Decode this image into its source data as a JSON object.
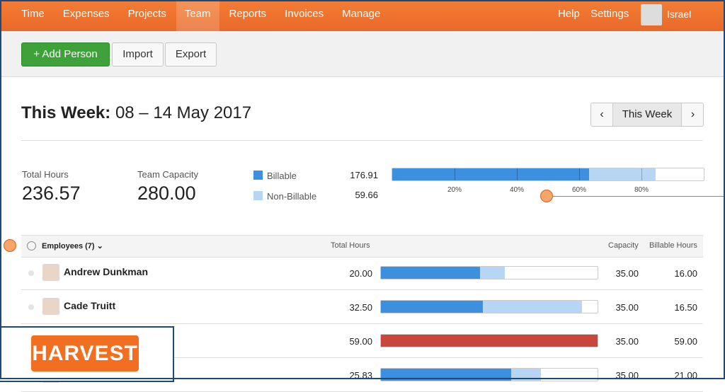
{
  "nav": {
    "items": [
      "Time",
      "Expenses",
      "Projects",
      "Team",
      "Reports",
      "Invoices",
      "Manage"
    ],
    "active": "Team",
    "right": [
      "Help",
      "Settings"
    ],
    "user": "Israel"
  },
  "toolbar": {
    "add": "+ Add Person",
    "import": "Import",
    "export": "Export"
  },
  "header": {
    "title_bold": "This Week:",
    "title_range": "08 – 14 May 2017",
    "week_button": "This Week"
  },
  "summary": {
    "total_label": "Total Hours",
    "total_value": "236.57",
    "capacity_label": "Team Capacity",
    "capacity_value": "280.00",
    "billable_label": "Billable",
    "billable_value": "176.91",
    "nonbillable_label": "Non-Billable",
    "nonbillable_value": "59.66",
    "ticks": [
      {
        "value": 20,
        "label": "20%"
      },
      {
        "value": 40,
        "label": "40%"
      },
      {
        "value": 60,
        "label": "60%"
      },
      {
        "value": 80,
        "label": "80%"
      }
    ]
  },
  "table": {
    "headers": {
      "employees": "Employees (7)",
      "total": "Total Hours",
      "capacity": "Capacity",
      "billable": "Billable Hours"
    },
    "rows": [
      {
        "name": "Andrew Dunkman",
        "total": "20.00",
        "capacity": "35.00",
        "billable": "16.00"
      },
      {
        "name": "Cade Truitt",
        "total": "32.50",
        "capacity": "35.00",
        "billable": "16.50"
      },
      {
        "total": "59.00",
        "capacity": "35.00",
        "billable": "59.00"
      },
      {
        "total": "25.83",
        "capacity": "35.00",
        "billable": "21.00"
      }
    ]
  },
  "logo": "HARVEST"
}
